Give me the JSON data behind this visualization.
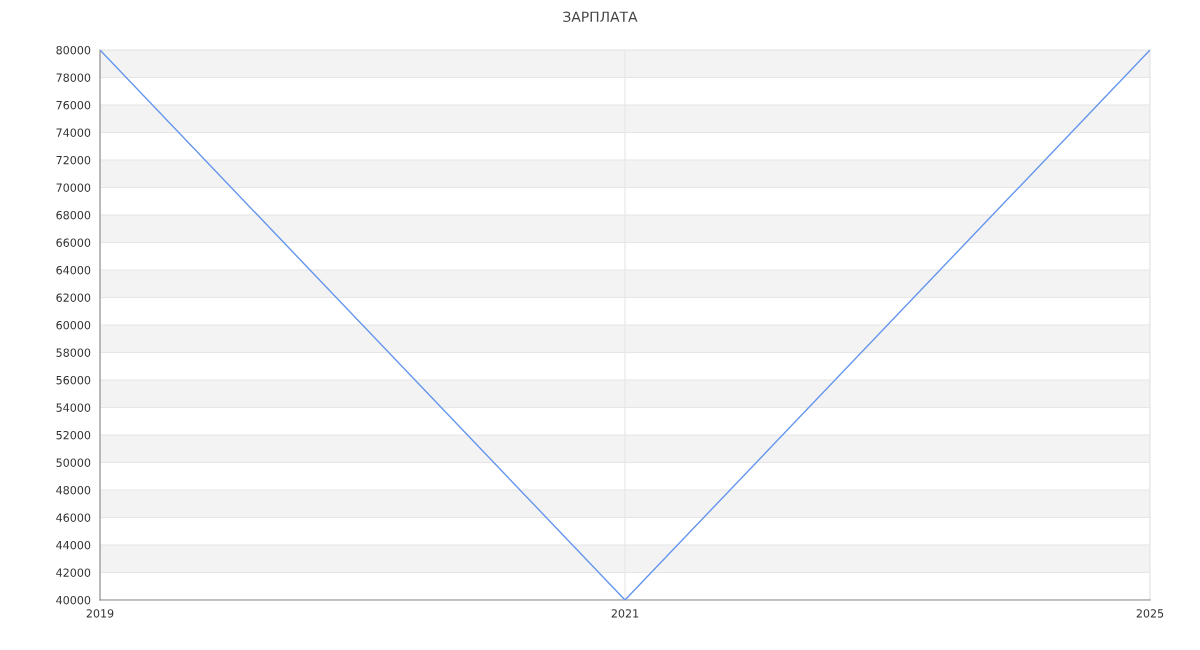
{
  "chart_data": {
    "type": "line",
    "title": "ЗАРПЛАТА",
    "categories": [
      "2019",
      "2021",
      "2025"
    ],
    "series": [
      {
        "color": "#6495ed",
        "values": [
          80000,
          40000,
          80000
        ]
      }
    ],
    "ylim": [
      40000,
      80000
    ],
    "yticks": [
      40000,
      42000,
      44000,
      46000,
      48000,
      50000,
      52000,
      54000,
      56000,
      58000,
      60000,
      62000,
      64000,
      66000,
      68000,
      70000,
      72000,
      74000,
      76000,
      78000,
      80000
    ],
    "grid": true,
    "marker": "none",
    "line_style": "solid"
  }
}
